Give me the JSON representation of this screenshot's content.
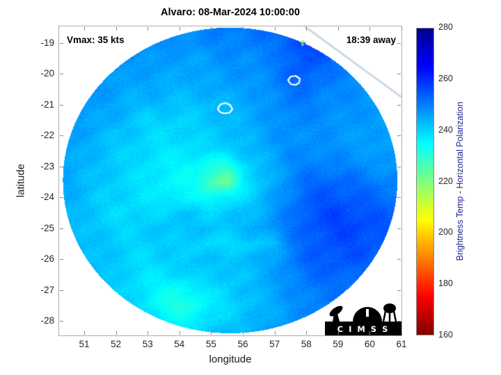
{
  "title": "Alvaro: 08-Mar-2024 10:00:00",
  "annotations": {
    "vmax": "Vmax: 35 kts",
    "eta": "18:39 away"
  },
  "axes": {
    "xlabel": "longitude",
    "ylabel": "latitude",
    "xticks": [
      51,
      52,
      53,
      54,
      55,
      56,
      57,
      58,
      59,
      60,
      61
    ],
    "yticks": [
      -19,
      -20,
      -21,
      -22,
      -23,
      -24,
      -25,
      -26,
      -27,
      -28
    ],
    "xlim": [
      50.21,
      61.0
    ],
    "ylim": [
      -28.47,
      -18.46
    ]
  },
  "colorbar": {
    "label": "Brightness Temp - Horizontal Polarization",
    "label_color": "#1b1b8a",
    "ticks": [
      160,
      180,
      200,
      220,
      240,
      260,
      280
    ],
    "min": 160,
    "max": 280
  },
  "logo": {
    "text": "C I M S S"
  },
  "chart_data": {
    "type": "heatmap",
    "title": "Alvaro: 08-Mar-2024 10:00:00",
    "xlabel": "longitude",
    "ylabel": "latitude",
    "value_label": "Brightness Temp - Horizontal Polarization (K)",
    "value_range": [
      160,
      280
    ],
    "colormap": "jet-reversed",
    "swath": {
      "center_lon": 55.6,
      "center_lat": -23.45,
      "radius_lon": 5.27,
      "radius_lat": 4.95
    },
    "grid_lons": [
      50.5,
      51,
      51.5,
      52,
      52.5,
      53,
      53.5,
      54,
      54.5,
      55,
      55.5,
      56,
      56.5,
      57,
      57.5,
      58,
      58.5,
      59,
      59.5,
      60,
      60.5,
      61
    ],
    "grid_lats": [
      -18.5,
      -19,
      -19.5,
      -20,
      -20.5,
      -21,
      -21.5,
      -22,
      -22.5,
      -23,
      -23.5,
      -24,
      -24.5,
      -25,
      -25.5,
      -26,
      -26.5,
      -27,
      -27.5,
      -28,
      -28.5
    ],
    "values": [
      [
        253,
        252,
        251,
        250,
        249,
        249,
        249,
        249,
        249,
        250,
        250,
        251,
        252,
        253,
        255,
        258,
        256,
        254,
        253,
        252,
        252,
        252
      ],
      [
        252,
        251,
        250,
        249,
        248,
        248,
        248,
        248,
        248,
        249,
        249,
        250,
        250,
        251,
        255,
        257,
        257,
        254,
        252,
        251,
        250,
        250
      ],
      [
        251,
        250,
        249,
        248,
        247,
        247,
        247,
        246,
        246,
        247,
        248,
        248,
        249,
        250,
        253,
        256,
        254,
        252,
        251,
        250,
        249,
        249
      ],
      [
        250,
        249,
        248,
        247,
        246,
        246,
        246,
        245,
        245,
        246,
        247,
        247,
        248,
        250,
        253,
        254,
        252,
        250,
        249,
        248,
        248,
        248
      ],
      [
        249,
        248,
        247,
        246,
        245,
        245,
        244,
        244,
        244,
        245,
        246,
        246,
        247,
        249,
        251,
        252,
        250,
        249,
        248,
        248,
        247,
        247
      ],
      [
        248,
        247,
        246,
        245,
        244,
        243,
        243,
        242,
        242,
        243,
        243,
        245,
        246,
        248,
        250,
        250,
        249,
        248,
        248,
        247,
        247,
        247
      ],
      [
        247,
        246,
        245,
        244,
        242,
        240,
        240,
        240,
        241,
        242,
        243,
        244,
        246,
        247,
        249,
        249,
        248,
        248,
        247,
        247,
        246,
        246
      ],
      [
        246,
        245,
        244,
        242,
        241,
        240,
        239,
        239,
        240,
        241,
        242,
        243,
        245,
        247,
        248,
        248,
        248,
        247,
        247,
        246,
        246,
        246
      ],
      [
        246,
        244,
        243,
        241,
        240,
        239,
        238,
        238,
        238,
        239,
        240,
        242,
        244,
        246,
        248,
        249,
        248,
        248,
        247,
        247,
        246,
        246
      ],
      [
        245,
        244,
        242,
        241,
        240,
        238,
        237,
        236,
        235,
        232,
        230,
        238,
        242,
        245,
        248,
        250,
        250,
        250,
        249,
        248,
        247,
        247
      ],
      [
        245,
        243,
        242,
        240,
        239,
        238,
        236,
        235,
        234,
        226,
        222,
        236,
        241,
        245,
        249,
        252,
        253,
        253,
        252,
        251,
        250,
        249
      ],
      [
        244,
        243,
        241,
        240,
        239,
        238,
        237,
        236,
        236,
        234,
        236,
        239,
        242,
        246,
        250,
        253,
        255,
        255,
        254,
        253,
        252,
        251
      ],
      [
        244,
        242,
        241,
        239,
        239,
        239,
        240,
        241,
        241,
        240,
        241,
        242,
        244,
        247,
        251,
        254,
        256,
        257,
        256,
        255,
        254,
        252
      ],
      [
        244,
        242,
        241,
        240,
        240,
        241,
        242,
        242,
        242,
        242,
        242,
        243,
        245,
        248,
        251,
        254,
        256,
        257,
        257,
        256,
        255,
        253
      ],
      [
        245,
        243,
        242,
        241,
        240,
        240,
        241,
        241,
        240,
        239,
        239,
        240,
        241,
        243,
        250,
        253,
        255,
        256,
        256,
        255,
        254,
        253
      ],
      [
        245,
        243,
        242,
        241,
        240,
        239,
        240,
        241,
        242,
        242,
        242,
        243,
        244,
        246,
        250,
        253,
        254,
        255,
        255,
        254,
        253,
        252
      ],
      [
        246,
        244,
        243,
        241,
        239,
        238,
        238,
        239,
        241,
        241,
        241,
        242,
        244,
        246,
        249,
        252,
        253,
        253,
        253,
        252,
        251,
        251
      ],
      [
        246,
        245,
        243,
        241,
        239,
        237,
        235,
        234,
        236,
        239,
        240,
        242,
        244,
        246,
        248,
        250,
        251,
        251,
        251,
        250,
        250,
        250
      ],
      [
        247,
        245,
        244,
        242,
        240,
        237,
        233,
        231,
        233,
        237,
        239,
        241,
        243,
        245,
        247,
        249,
        250,
        250,
        250,
        249,
        249,
        249
      ],
      [
        248,
        246,
        245,
        243,
        242,
        240,
        237,
        235,
        236,
        239,
        241,
        242,
        244,
        246,
        247,
        248,
        249,
        249,
        249,
        248,
        248,
        248
      ],
      [
        249,
        247,
        246,
        245,
        244,
        243,
        241,
        240,
        241,
        242,
        243,
        244,
        245,
        246,
        247,
        248,
        248,
        248,
        248,
        248,
        248,
        248
      ]
    ],
    "contours": [
      {
        "lon": 55.45,
        "lat": -21.12,
        "pts": [
          [
            -11,
            0
          ],
          [
            -7,
            -6
          ],
          [
            0,
            -8
          ],
          [
            7,
            -5
          ],
          [
            10,
            1
          ],
          [
            6,
            6
          ],
          [
            -2,
            7
          ],
          [
            -8,
            5
          ]
        ]
      },
      {
        "lon": 57.62,
        "lat": -20.22,
        "pts": [
          [
            -9,
            -1
          ],
          [
            -5,
            -6
          ],
          [
            2,
            -7
          ],
          [
            8,
            -3
          ],
          [
            7,
            3
          ],
          [
            2,
            6
          ],
          [
            -5,
            5
          ]
        ]
      }
    ],
    "edge_feature": {
      "lon": 57.85,
      "lat": -18.95
    },
    "swath_edge": {
      "from": [
        57.95,
        -18.46
      ],
      "to": [
        61.0,
        -20.75
      ]
    }
  }
}
